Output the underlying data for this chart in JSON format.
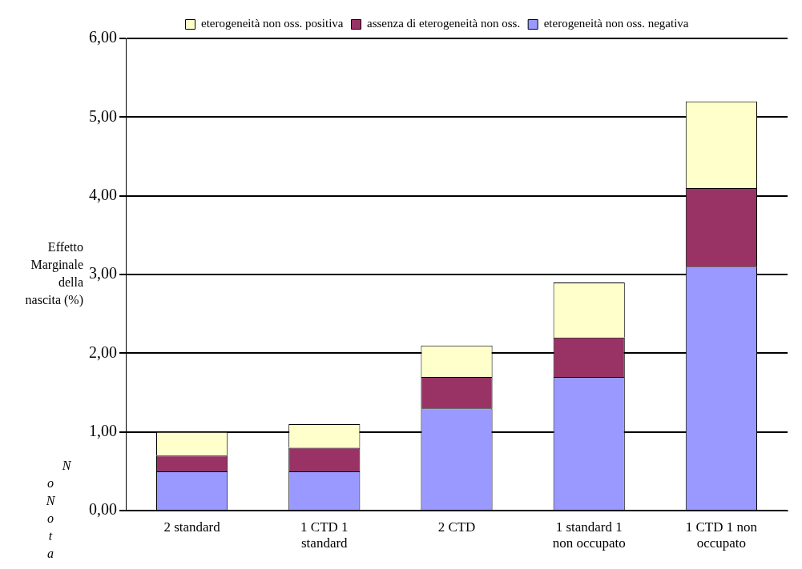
{
  "chart_data": {
    "type": "bar",
    "stacked": true,
    "ylabel": "Effetto Marginale della nascita (%)",
    "categories": [
      "2 standard",
      "1 CTD 1 standard",
      "2 CTD",
      "1 standard 1 non occupato",
      "1 CTD 1 non occupato"
    ],
    "series": [
      {
        "name": "eterogeneità non oss. negativa",
        "color": "#9999ff",
        "values": [
          0.5,
          0.5,
          1.3,
          1.7,
          3.1
        ]
      },
      {
        "name": "assenza di eterogeneità non oss.",
        "color": "#993366",
        "values": [
          0.2,
          0.3,
          0.4,
          0.5,
          1.0
        ]
      },
      {
        "name": "eterogeneità non oss. positiva",
        "color": "#ffffcc",
        "values": [
          0.3,
          0.3,
          0.4,
          0.7,
          1.1
        ]
      }
    ],
    "ylim": [
      0,
      6
    ],
    "yticks": [
      {
        "value": 0,
        "label": "0,00"
      },
      {
        "value": 1,
        "label": "1,00"
      },
      {
        "value": 2,
        "label": "2,00"
      },
      {
        "value": 3,
        "label": "3,00"
      },
      {
        "value": 4,
        "label": "4,00"
      },
      {
        "value": 5,
        "label": "5,00"
      },
      {
        "value": 6,
        "label": "6,00"
      }
    ],
    "grid": "y",
    "legend": "top",
    "annotations": [
      "NoNota"
    ]
  }
}
